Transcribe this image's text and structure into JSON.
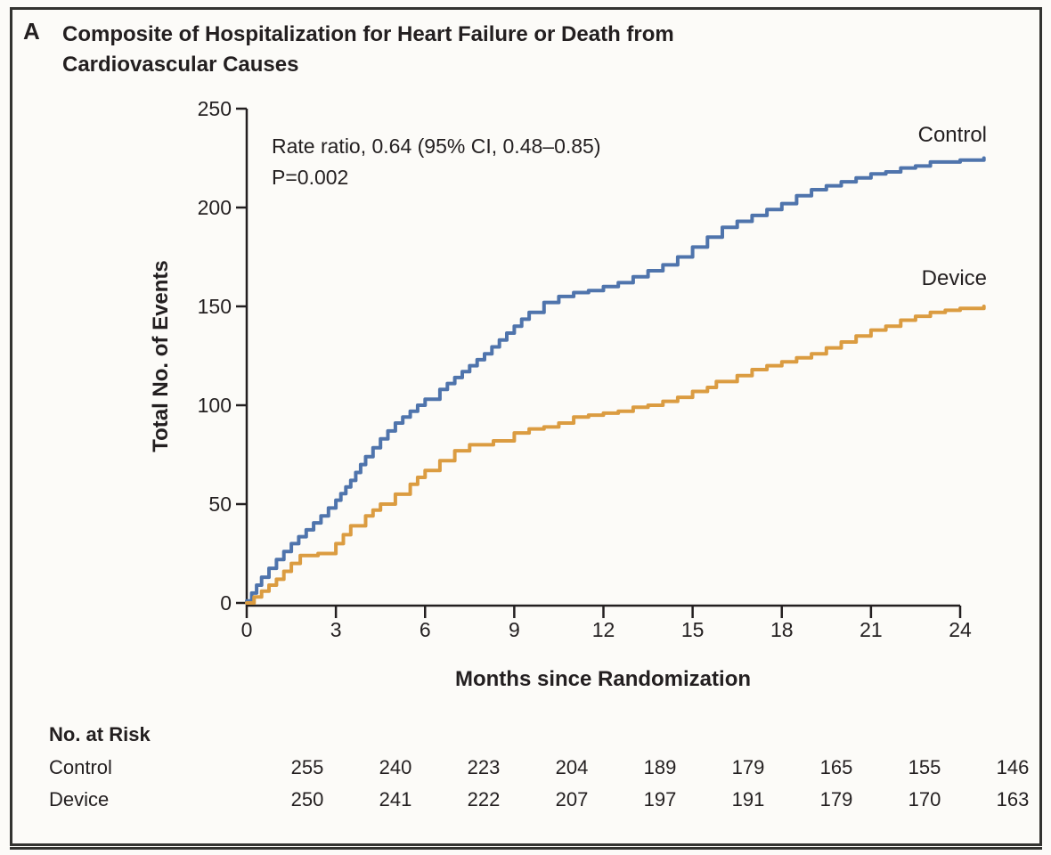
{
  "panel": {
    "label": "A",
    "title_line1": "Composite of Hospitalization for Heart Failure or Death from",
    "title_line2": "Cardiovascular Causes"
  },
  "chart_data": {
    "type": "line",
    "title": "Composite of Hospitalization for Heart Failure or Death from Cardiovascular Causes",
    "xlabel": "Months since Randomization",
    "ylabel": "Total No. of Events",
    "xlim": [
      0,
      24.8
    ],
    "ylim": [
      0,
      250
    ],
    "x_ticks": [
      0,
      3,
      6,
      9,
      12,
      15,
      18,
      21,
      24
    ],
    "y_ticks": [
      0,
      50,
      100,
      150,
      200,
      250
    ],
    "grid": false,
    "legend_position": "inline-right-labels",
    "annotation": {
      "line1": "Rate ratio, 0.64 (95% CI, 0.48–0.85)",
      "line2": "P=0.002"
    },
    "series": [
      {
        "name": "Control",
        "color": "#4F74AC",
        "points": [
          [
            0,
            1
          ],
          [
            0.5,
            13
          ],
          [
            1,
            22
          ],
          [
            1.5,
            30
          ],
          [
            2,
            37
          ],
          [
            2.5,
            44
          ],
          [
            3,
            52
          ],
          [
            3.5,
            62
          ],
          [
            4,
            74
          ],
          [
            4.5,
            83
          ],
          [
            5,
            91
          ],
          [
            5.5,
            97
          ],
          [
            6,
            103
          ],
          [
            6.5,
            108
          ],
          [
            7,
            114
          ],
          [
            7.5,
            120
          ],
          [
            8,
            126
          ],
          [
            8.5,
            133
          ],
          [
            9,
            140
          ],
          [
            9.5,
            147
          ],
          [
            10,
            152
          ],
          [
            10.5,
            155
          ],
          [
            11,
            157
          ],
          [
            11.5,
            158
          ],
          [
            12,
            160
          ],
          [
            12.5,
            162
          ],
          [
            13,
            165
          ],
          [
            13.5,
            168
          ],
          [
            14,
            171
          ],
          [
            14.5,
            175
          ],
          [
            15,
            180
          ],
          [
            15.5,
            185
          ],
          [
            16,
            190
          ],
          [
            16.5,
            193
          ],
          [
            17,
            196
          ],
          [
            17.5,
            199
          ],
          [
            18,
            202
          ],
          [
            18.5,
            206
          ],
          [
            19,
            209
          ],
          [
            19.5,
            211
          ],
          [
            20,
            213
          ],
          [
            20.5,
            215
          ],
          [
            21,
            217
          ],
          [
            21.5,
            218
          ],
          [
            22,
            220
          ],
          [
            22.5,
            221
          ],
          [
            23,
            223
          ],
          [
            23.5,
            223
          ],
          [
            24,
            224
          ],
          [
            24.8,
            225
          ]
        ]
      },
      {
        "name": "Device",
        "color": "#DB9C41",
        "points": [
          [
            0,
            0
          ],
          [
            0.5,
            6
          ],
          [
            1,
            12
          ],
          [
            1.5,
            20
          ],
          [
            1.8,
            24
          ],
          [
            2.4,
            25
          ],
          [
            3,
            30
          ],
          [
            3.5,
            39
          ],
          [
            4,
            44
          ],
          [
            4.5,
            50
          ],
          [
            5,
            55
          ],
          [
            5.5,
            60
          ],
          [
            6,
            67
          ],
          [
            6.5,
            72
          ],
          [
            7,
            77
          ],
          [
            7.5,
            80
          ],
          [
            8.3,
            82
          ],
          [
            9,
            86
          ],
          [
            9.5,
            88
          ],
          [
            10,
            89
          ],
          [
            10.5,
            91
          ],
          [
            11,
            94
          ],
          [
            11.5,
            95
          ],
          [
            12,
            96
          ],
          [
            12.5,
            97
          ],
          [
            13,
            99
          ],
          [
            13.5,
            100
          ],
          [
            14,
            102
          ],
          [
            14.5,
            104
          ],
          [
            15,
            107
          ],
          [
            15.5,
            109
          ],
          [
            15.8,
            112
          ],
          [
            16.5,
            115
          ],
          [
            17,
            118
          ],
          [
            17.5,
            120
          ],
          [
            18,
            122
          ],
          [
            18.5,
            124
          ],
          [
            19,
            126
          ],
          [
            19.5,
            129
          ],
          [
            20,
            132
          ],
          [
            20.5,
            135
          ],
          [
            21,
            138
          ],
          [
            21.5,
            140
          ],
          [
            22,
            143
          ],
          [
            22.5,
            145
          ],
          [
            23,
            147
          ],
          [
            23.5,
            148
          ],
          [
            24,
            149
          ],
          [
            24.8,
            150
          ]
        ]
      }
    ],
    "at_risk": {
      "header": "No. at Risk",
      "months": [
        0,
        3,
        6,
        9,
        12,
        15,
        18,
        21,
        24
      ],
      "rows": [
        {
          "label": "Control",
          "values": [
            255,
            240,
            223,
            204,
            189,
            179,
            165,
            155,
            146
          ]
        },
        {
          "label": "Device",
          "values": [
            250,
            241,
            222,
            207,
            197,
            191,
            179,
            170,
            163
          ]
        }
      ]
    }
  },
  "colors": {
    "control": "#4F74AC",
    "device": "#DB9C41",
    "axis": "#231F20",
    "text": "#231F20",
    "background": "#FCFBF8",
    "border": "#333330"
  }
}
